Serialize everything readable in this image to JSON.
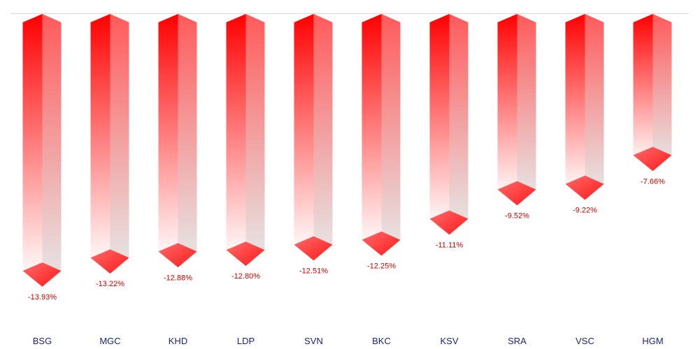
{
  "chart_data": {
    "type": "bar",
    "orientation": "vertical-downward-3d",
    "categories": [
      "BSG",
      "MGC",
      "KHD",
      "LDP",
      "SVN",
      "BKC",
      "KSV",
      "SRA",
      "VSC",
      "HGM"
    ],
    "values": [
      -13.93,
      -13.22,
      -12.88,
      -12.8,
      -12.51,
      -12.25,
      -11.11,
      -9.52,
      -9.22,
      -7.66
    ],
    "value_labels": [
      "-13.93%",
      "-13.22%",
      "-12.88%",
      "-12.80%",
      "-12.51%",
      "-12.25%",
      "-11.11%",
      "-9.52%",
      "-9.22%",
      "-7.66%"
    ],
    "title": "",
    "xlabel": "",
    "ylabel": "",
    "ylim": [
      -14.93,
      0
    ],
    "grid": false,
    "legend": "none"
  },
  "colors": {
    "bar_top": "#ff0000",
    "bar_fade": "#ffffff",
    "side_top": "#ff5a5a",
    "side_bottom": "#e6e6e6",
    "cap": "#ff3030",
    "value_label": "#cc0000",
    "category_label": "#1a237e",
    "baseline": "#d9d9d9"
  }
}
